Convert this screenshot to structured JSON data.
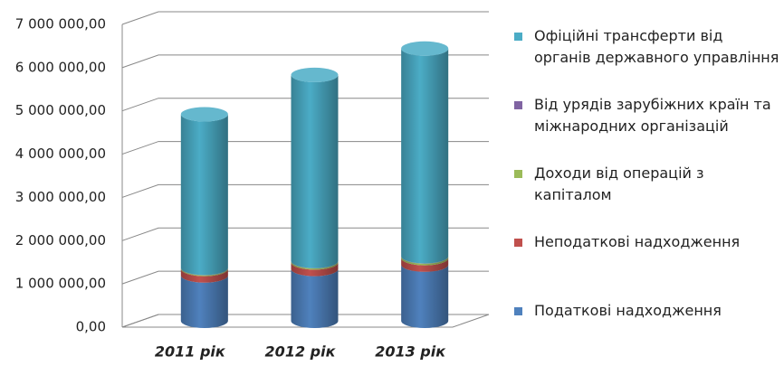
{
  "chart_data": {
    "type": "bar3d_stacked",
    "categories": [
      "2011 рік",
      "2012 рік",
      "2013 рік"
    ],
    "series": [
      {
        "name": "Податкові надходження",
        "color": "#4f81bd",
        "values": [
          1050000,
          1200000,
          1300000
        ]
      },
      {
        "name": "Неподаткові надходження",
        "color": "#c0504d",
        "values": [
          150000,
          150000,
          150000
        ]
      },
      {
        "name": "Доходи від операцій з капіталом",
        "color": "#9bbb59",
        "values": [
          20000,
          30000,
          40000
        ]
      },
      {
        "name": "Від урядів зарубіжних країн та міжнародних організацій",
        "color": "#8064a2",
        "values": [
          5000,
          5000,
          5000
        ]
      },
      {
        "name": "Офіційні трансферти від органів державного управління",
        "color": "#4bacc6",
        "values": [
          3550000,
          4300000,
          4800000
        ]
      }
    ],
    "ylim": [
      0,
      7000000
    ],
    "yticks": [
      {
        "value": 0,
        "label": "0,00"
      },
      {
        "value": 1000000,
        "label": "1 000 000,00"
      },
      {
        "value": 2000000,
        "label": "2 000 000,00"
      },
      {
        "value": 3000000,
        "label": "3 000 000,00"
      },
      {
        "value": 4000000,
        "label": "4 000 000,00"
      },
      {
        "value": 5000000,
        "label": "5 000 000,00"
      },
      {
        "value": 6000000,
        "label": "6 000 000,00"
      },
      {
        "value": 7000000,
        "label": "7 000 000,00"
      }
    ],
    "grid": true,
    "legend": "right"
  }
}
